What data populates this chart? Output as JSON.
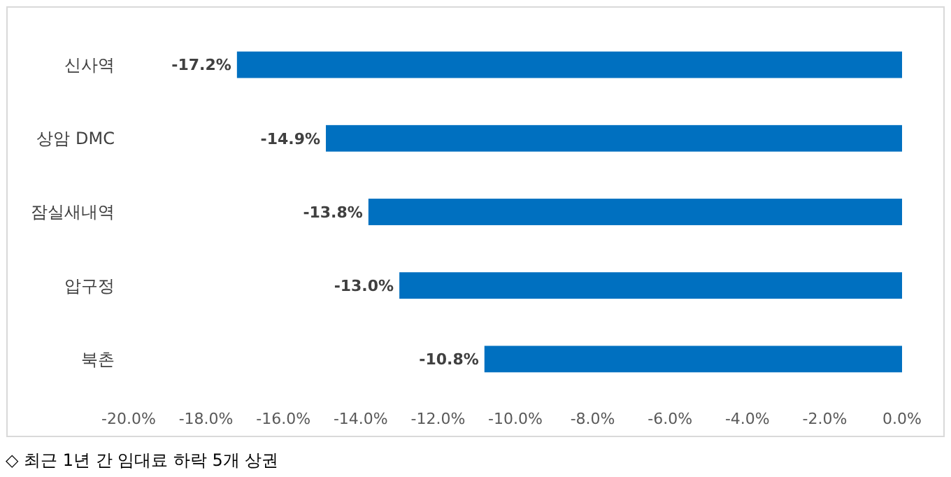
{
  "chart_data": {
    "type": "bar",
    "orientation": "horizontal",
    "categories": [
      "신사역",
      "상암 DMC",
      "잠실새내역",
      "압구정",
      "북촌"
    ],
    "values": [
      -17.2,
      -14.9,
      -13.8,
      -13.0,
      -10.8
    ],
    "value_labels": [
      "-17.2%",
      "-14.9%",
      "-13.8%",
      "-13.0%",
      "-10.8%"
    ],
    "color": "#0070c0",
    "xlim": [
      -20,
      0
    ],
    "xticks": [
      {
        "value": -20,
        "label": "-20.0%"
      },
      {
        "value": -18,
        "label": "-18.0%"
      },
      {
        "value": -16,
        "label": "-16.0%"
      },
      {
        "value": -14,
        "label": "-14.0%"
      },
      {
        "value": -12,
        "label": "-12.0%"
      },
      {
        "value": -10,
        "label": "-10.0%"
      },
      {
        "value": -8,
        "label": "-8.0%"
      },
      {
        "value": -6,
        "label": "-6.0%"
      },
      {
        "value": -4,
        "label": "-4.0%"
      },
      {
        "value": -2,
        "label": "-2.0%"
      },
      {
        "value": 0,
        "label": "0.0%"
      }
    ],
    "annotations": [
      "◇ 최근 1년 간 임대료 하락 5개 상권"
    ]
  }
}
